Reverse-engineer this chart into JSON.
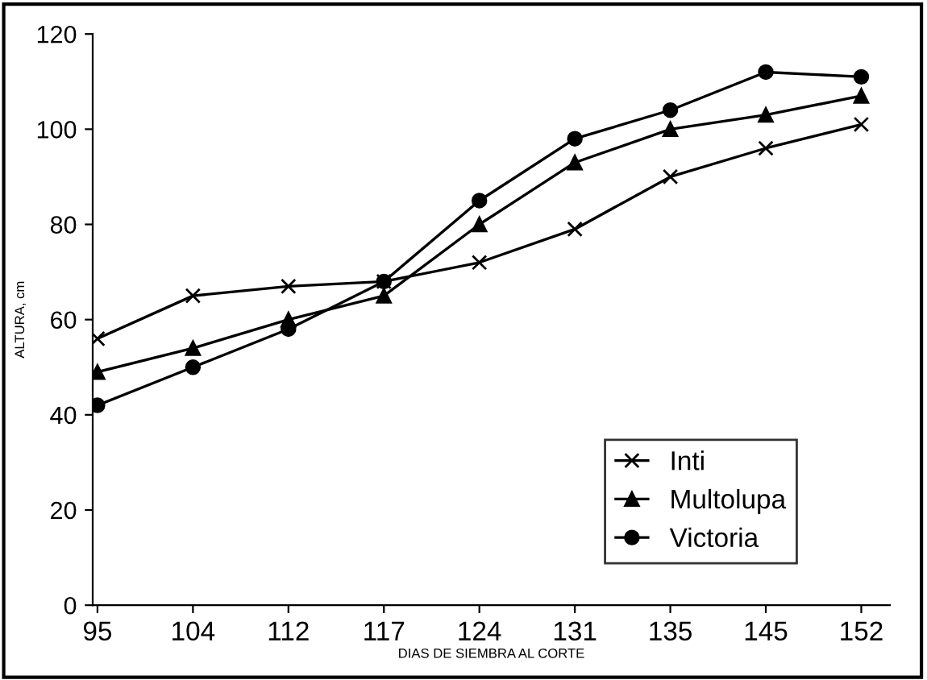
{
  "chart_data": {
    "type": "line",
    "xlabel": "DIAS DE SIEMBRA AL CORTE",
    "ylabel": "ALTURA, cm",
    "categories": [
      "95",
      "104",
      "112",
      "117",
      "124",
      "131",
      "135",
      "145",
      "152"
    ],
    "series": [
      {
        "name": "Inti",
        "color": "#000000",
        "marker": "cross",
        "values": [
          56,
          65,
          67,
          68,
          72,
          79,
          90,
          96,
          101
        ]
      },
      {
        "name": "Multolupa",
        "color": "#000000",
        "marker": "triangle",
        "values": [
          49,
          54,
          60,
          65,
          80,
          93,
          100,
          103,
          107
        ]
      },
      {
        "name": "Victoria",
        "color": "#000000",
        "marker": "circle",
        "values": [
          42,
          50,
          58,
          68,
          85,
          98,
          104,
          112,
          111
        ]
      }
    ],
    "ylim": [
      0,
      120
    ],
    "yticks": [
      0,
      20,
      40,
      60,
      80,
      100,
      120
    ],
    "grid": false,
    "legend": "lower right",
    "line_style": "solid"
  }
}
